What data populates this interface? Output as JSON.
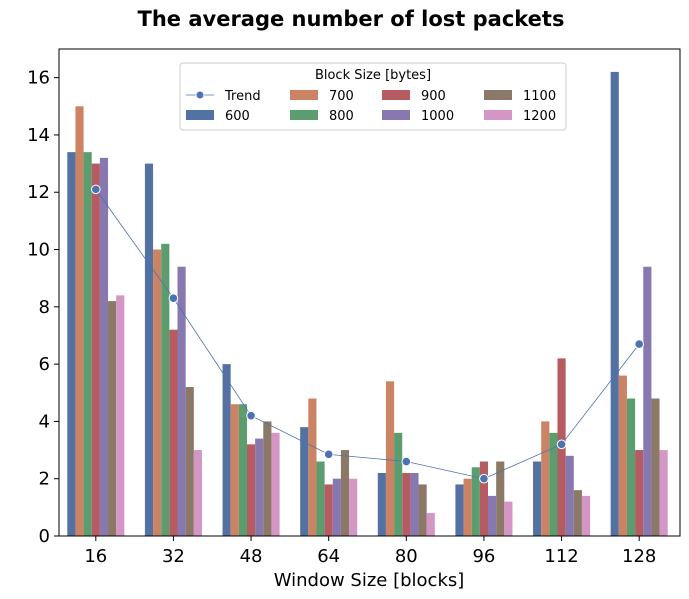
{
  "chart_data": {
    "type": "bar",
    "title": "The average number of lost packets",
    "xlabel": "Window Size [blocks]",
    "ylabel": "",
    "ylim": [
      0,
      17
    ],
    "yticks": [
      0,
      2,
      4,
      6,
      8,
      10,
      12,
      14,
      16
    ],
    "categories": [
      "16",
      "32",
      "48",
      "64",
      "80",
      "96",
      "112",
      "128"
    ],
    "legend_title": "Block Size [bytes]",
    "legend_position": "top-center",
    "series": [
      {
        "name": "600",
        "color": "#5471a3",
        "values": [
          13.4,
          13.0,
          6.0,
          3.8,
          2.2,
          1.8,
          2.6,
          16.2
        ]
      },
      {
        "name": "700",
        "color": "#cc8363",
        "values": [
          15.0,
          10.0,
          4.6,
          4.8,
          5.4,
          2.0,
          4.0,
          5.6
        ]
      },
      {
        "name": "800",
        "color": "#5b9d6e",
        "values": [
          13.4,
          10.2,
          4.6,
          2.6,
          3.6,
          2.4,
          3.6,
          4.8
        ]
      },
      {
        "name": "900",
        "color": "#b55b61",
        "values": [
          13.0,
          7.2,
          3.2,
          1.8,
          2.2,
          2.6,
          6.2,
          3.0
        ]
      },
      {
        "name": "1000",
        "color": "#8778b0",
        "values": [
          13.2,
          9.4,
          3.4,
          2.0,
          2.2,
          1.4,
          2.8,
          9.4
        ]
      },
      {
        "name": "1100",
        "color": "#8c7866",
        "values": [
          8.2,
          5.2,
          4.0,
          3.0,
          1.8,
          2.6,
          1.6,
          4.8
        ]
      },
      {
        "name": "1200",
        "color": "#d496c4",
        "values": [
          8.4,
          3.0,
          3.6,
          2.0,
          0.8,
          1.2,
          1.4,
          3.0
        ]
      }
    ],
    "trend": {
      "name": "Trend",
      "color": "#4c72b0",
      "values": [
        12.1,
        8.3,
        4.2,
        2.85,
        2.6,
        2.0,
        3.2,
        6.7
      ]
    }
  }
}
